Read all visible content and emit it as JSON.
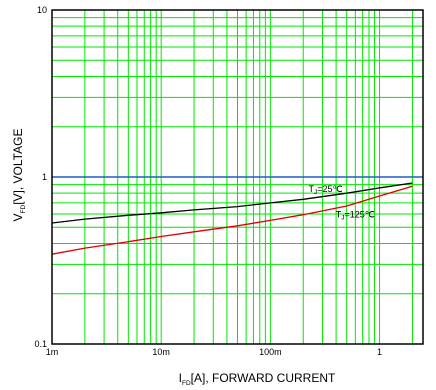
{
  "chart_data": {
    "type": "line",
    "x_scale": "log",
    "y_scale": "log",
    "xlim": [
      0.001,
      2.5
    ],
    "ylim": [
      0.1,
      10
    ],
    "grid": true,
    "x_ticks": [
      {
        "value": 0.001,
        "label": "1m"
      },
      {
        "value": 0.01,
        "label": "10m"
      },
      {
        "value": 0.1,
        "label": "100m"
      },
      {
        "value": 1,
        "label": "1"
      }
    ],
    "y_ticks": [
      {
        "value": 0.1,
        "label": "0.1"
      },
      {
        "value": 1,
        "label": "1"
      },
      {
        "value": 10,
        "label": "10"
      }
    ],
    "xlabel": {
      "main": "I",
      "sub": "FD",
      "rest": "[A], FORWARD CURRENT"
    },
    "ylabel": {
      "main": "V",
      "sub": "FD",
      "rest": "[V], VOLTAGE"
    },
    "colors": {
      "grid": "#00e600",
      "reference_line": "#1f5fc0",
      "frame": "#000000"
    },
    "reference_line_y": 1,
    "series": [
      {
        "label": {
          "main": "T",
          "sub": "J",
          "rest": "=25℃"
        },
        "color": "#000000",
        "x": [
          0.001,
          0.002,
          0.005,
          0.01,
          0.02,
          0.05,
          0.1,
          0.2,
          0.5,
          1,
          2
        ],
        "y": [
          0.53,
          0.56,
          0.59,
          0.61,
          0.635,
          0.665,
          0.7,
          0.735,
          0.8,
          0.86,
          0.92
        ]
      },
      {
        "label": {
          "main": "T",
          "sub": "J",
          "rest": "=125℃"
        },
        "color": "#e00000",
        "x": [
          0.001,
          0.002,
          0.005,
          0.01,
          0.02,
          0.05,
          0.1,
          0.2,
          0.5,
          1,
          2
        ],
        "y": [
          0.345,
          0.375,
          0.41,
          0.44,
          0.47,
          0.51,
          0.55,
          0.595,
          0.67,
          0.77,
          0.88
        ]
      }
    ]
  }
}
